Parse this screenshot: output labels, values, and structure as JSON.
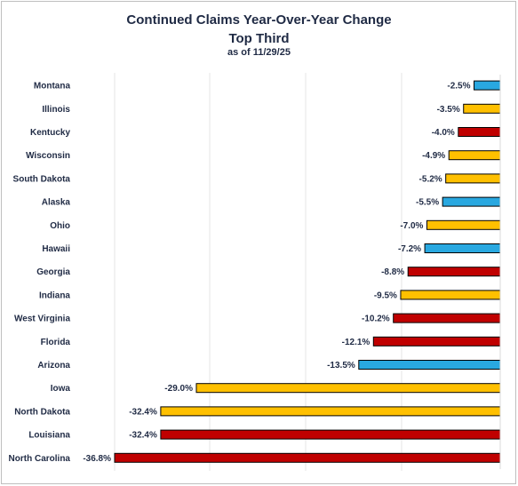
{
  "chart_data": {
    "type": "bar",
    "orientation": "horizontal",
    "title": "Continued Claims Year-Over-Year Change",
    "subtitle": "Top Third",
    "date_note": "as of 11/29/25",
    "categories": [
      "Montana",
      "Illinois",
      "Kentucky",
      "Wisconsin",
      "South Dakota",
      "Alaska",
      "Ohio",
      "Hawaii",
      "Georgia",
      "Indiana",
      "West Virginia",
      "Florida",
      "Arizona",
      "Iowa",
      "North Dakota",
      "Louisiana",
      "North Carolina"
    ],
    "values": [
      -2.5,
      -3.5,
      -4.0,
      -4.9,
      -5.2,
      -5.5,
      -7.0,
      -7.2,
      -8.8,
      -9.5,
      -10.2,
      -12.1,
      -13.5,
      -29.0,
      -32.4,
      -32.4,
      -36.8
    ],
    "value_labels": [
      "-2.5%",
      "-3.5%",
      "-4.0%",
      "-4.9%",
      "-5.2%",
      "-5.5%",
      "-7.0%",
      "-7.2%",
      "-8.8%",
      "-9.5%",
      "-10.2%",
      "-12.1%",
      "-13.5%",
      "-29.0%",
      "-32.4%",
      "-32.4%",
      "-36.8%"
    ],
    "bar_colors": [
      "#29a8e0",
      "#ffc000",
      "#c00000",
      "#ffc000",
      "#ffc000",
      "#29a8e0",
      "#ffc000",
      "#29a8e0",
      "#c00000",
      "#ffc000",
      "#c00000",
      "#c00000",
      "#29a8e0",
      "#ffc000",
      "#ffc000",
      "#c00000",
      "#c00000"
    ],
    "xlim": [
      -36.8,
      0
    ],
    "grid": true,
    "legend": "none"
  }
}
